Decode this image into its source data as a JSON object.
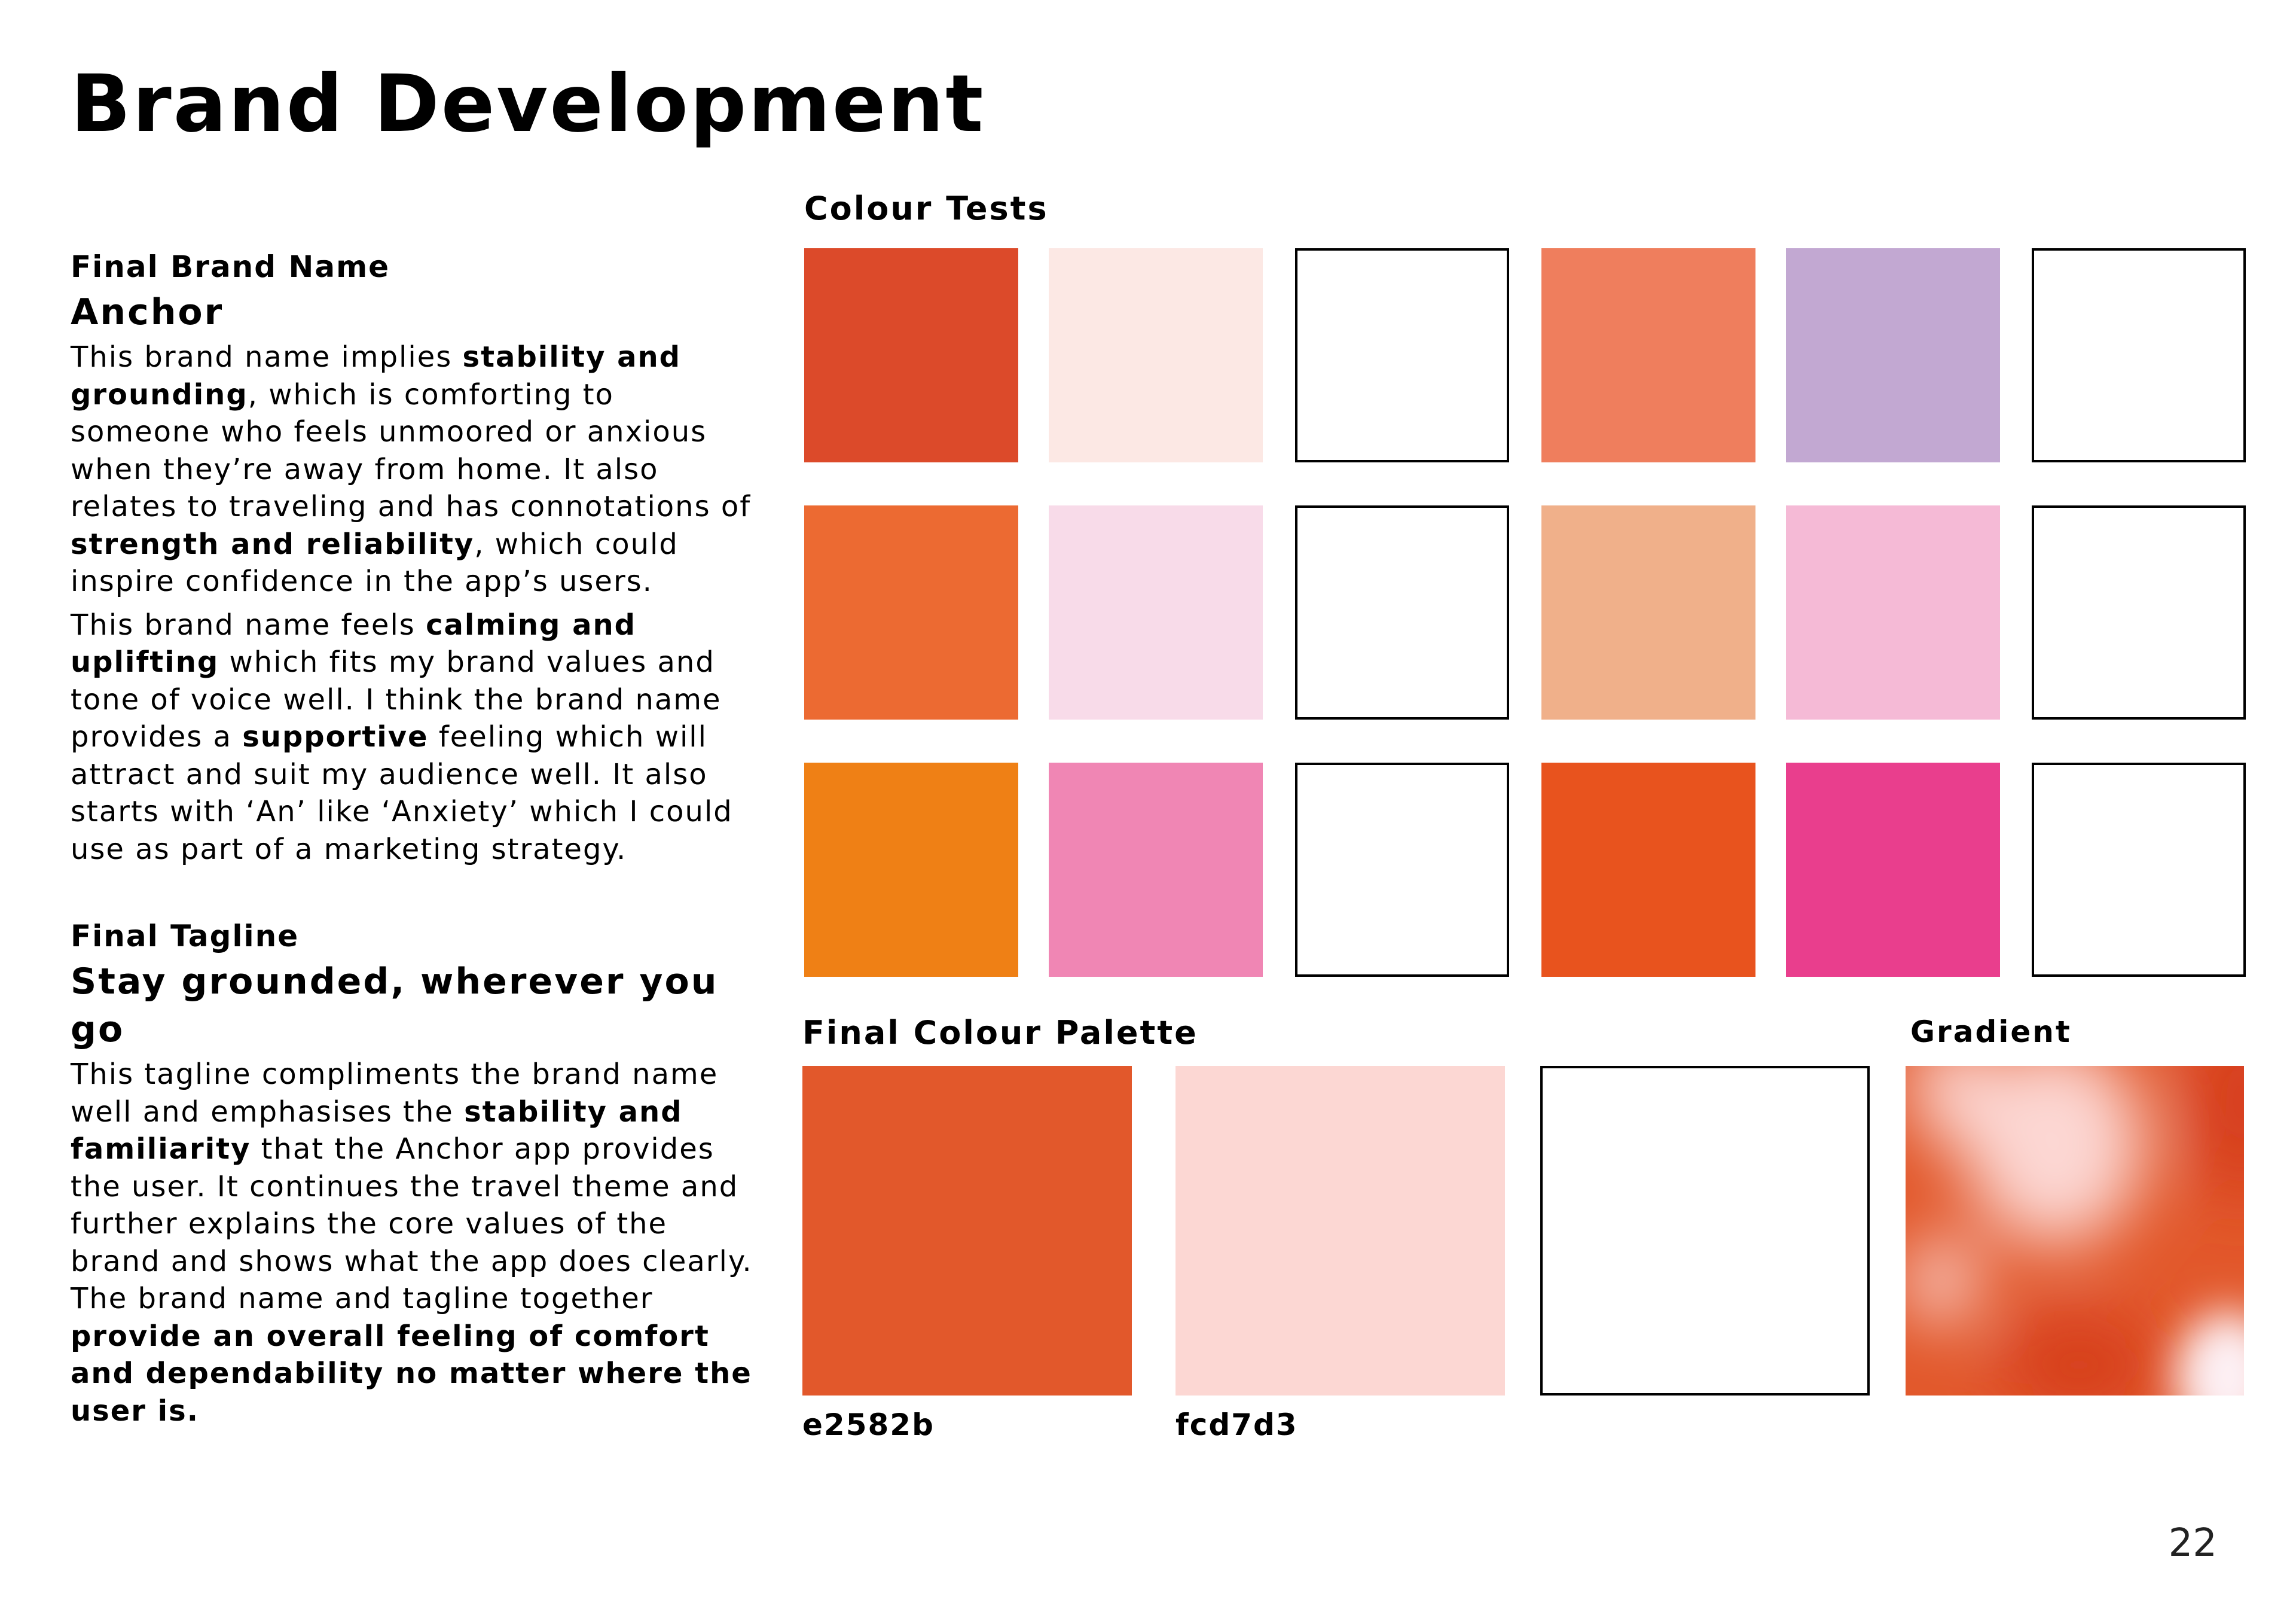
{
  "page": {
    "title": "Brand Development",
    "page_number": "22"
  },
  "brand_name": {
    "label": "Final Brand Name",
    "name": "Anchor",
    "para1": {
      "t1": "This brand name implies ",
      "b1": "stability and grounding",
      "t2": ", which is comforting to someone who feels unmoored or anxious when they’re away from home. It also relates to traveling and has connotations of ",
      "b2": "strength and reliability",
      "t3": ", which could inspire confidence in the app’s users."
    },
    "para2": {
      "t1": "This brand name feels ",
      "b1": "calming and uplifting",
      "t2": " which fits my brand values and tone of voice well. I think the brand name provides a ",
      "b2": "supportive",
      "t3": " feeling which will attract and suit my audience well. It also starts with ‘An’ like ‘Anxiety’ which I could use as part of a marketing strategy."
    }
  },
  "tagline": {
    "label": "Final Tagline",
    "text": "Stay grounded, wherever you go",
    "para": {
      "t1": "This tagline compliments the brand name well and emphasises the ",
      "b1": "stability and familiarity",
      "t2": " that the Anchor app provides the user. It continues the travel theme and further explains the core values of the brand and shows what the app does clearly. The brand name and tagline together ",
      "b2": "provide an overall feeling of comfort and dependability no matter where the user is."
    }
  },
  "colour_tests": {
    "label": "Colour Tests",
    "rows": [
      [
        "#dc4a2a",
        "#fce8e4",
        "#ffffff",
        "#ef7e5d",
        "#c2a8d2",
        "#ffffff"
      ],
      [
        "#ec6a32",
        "#f8dbe9",
        "#ffffff",
        "#f0b08a",
        "#f5bad6",
        "#ffffff"
      ],
      [
        "#ef8015",
        "#f086b4",
        "#ffffff",
        "#e8531e",
        "#e93e8d",
        "#ffffff"
      ]
    ]
  },
  "final_palette": {
    "label": "Final Colour Palette",
    "swatches": [
      {
        "color": "#e2582b",
        "hex": "e2582b"
      },
      {
        "color": "#fcd7d3",
        "hex": "fcd7d3"
      },
      {
        "color": "#ffffff",
        "hex": ""
      }
    ]
  },
  "gradient": {
    "label": "Gradient",
    "colors": [
      "#e2582b",
      "#fcd7d3",
      "#d63e1e",
      "#fdf0f4"
    ]
  }
}
